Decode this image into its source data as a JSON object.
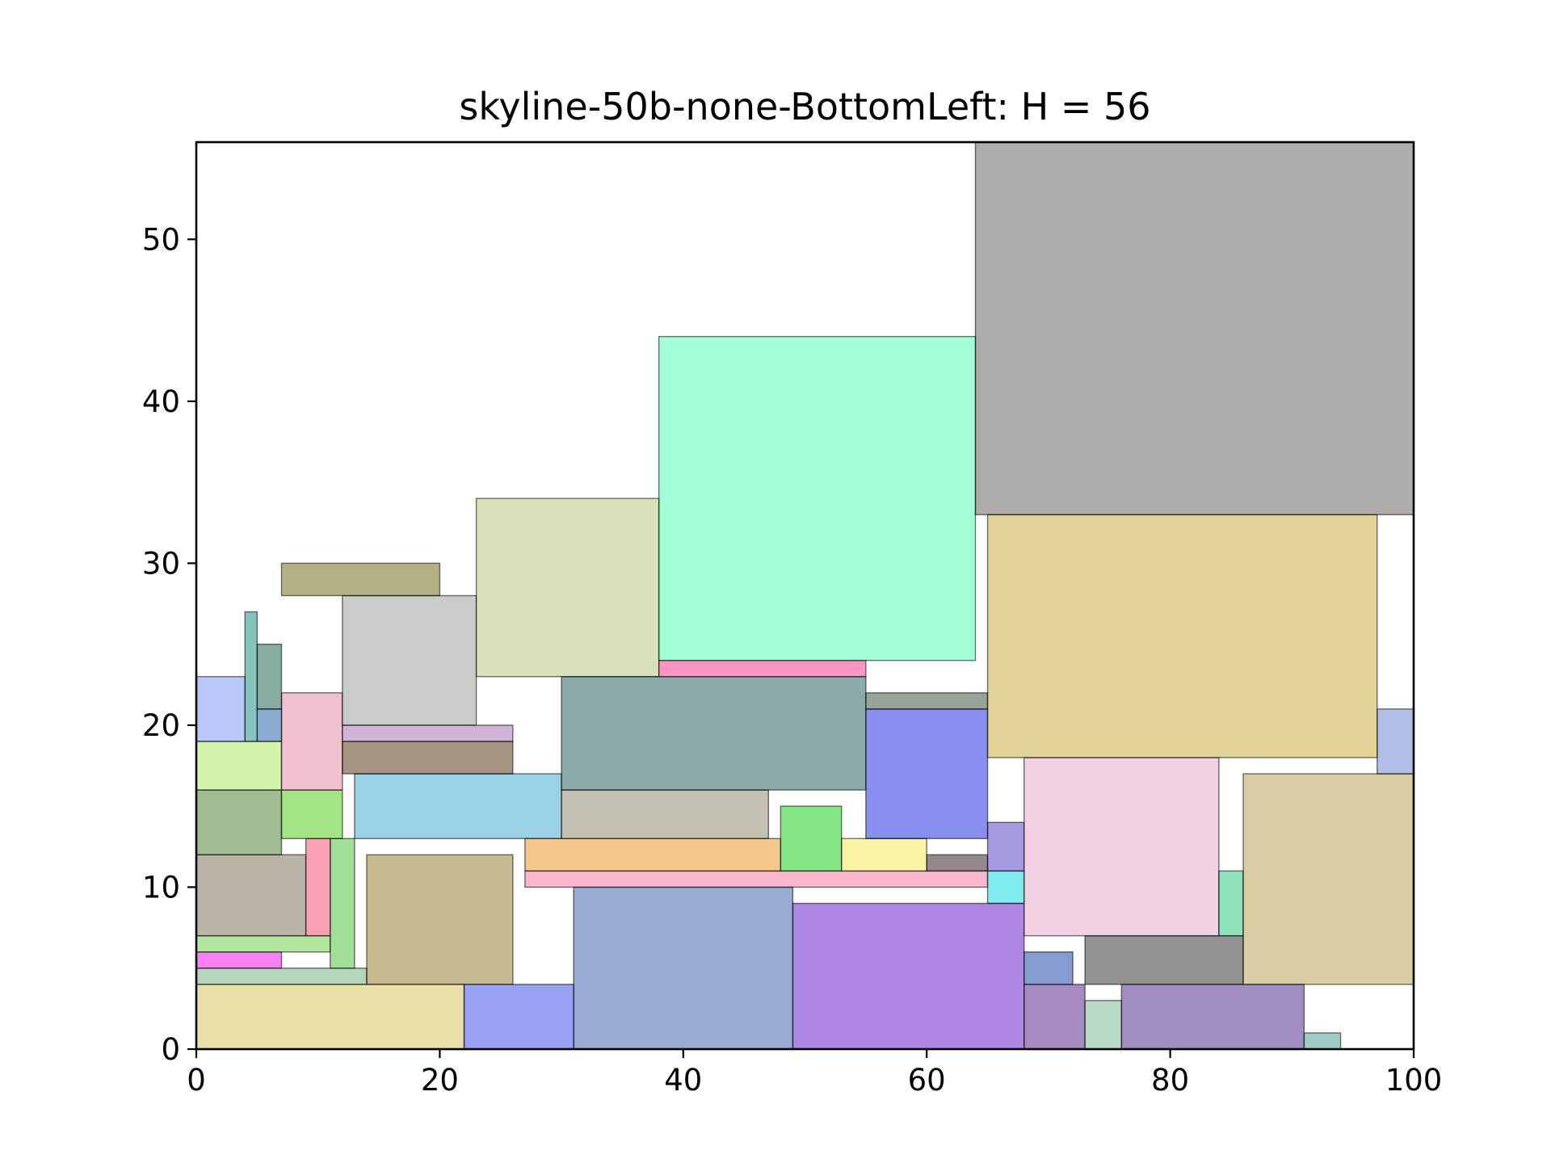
{
  "chart_data": {
    "type": "rectangles",
    "title": "skyline-50b-none-BottomLeft: H = 56",
    "xlabel": "",
    "ylabel": "",
    "xlim": [
      0,
      100
    ],
    "ylim": [
      0,
      56
    ],
    "grid": false,
    "legend": "none",
    "x_ticks": [
      0,
      20,
      40,
      60,
      80,
      100
    ],
    "y_ticks": [
      0,
      10,
      20,
      30,
      40,
      50
    ],
    "rects": [
      {
        "x": 0,
        "y": 0,
        "w": 22,
        "h": 4,
        "color": "#d4c155"
      },
      {
        "x": 22,
        "y": 0,
        "w": 9,
        "h": 4,
        "color": "#3344e6"
      },
      {
        "x": 31,
        "y": 0,
        "w": 18,
        "h": 10,
        "color": "#3358aa"
      },
      {
        "x": 49,
        "y": 0,
        "w": 19,
        "h": 9,
        "color": "#5f0ccb"
      },
      {
        "x": 68,
        "y": 0,
        "w": 5,
        "h": 4,
        "color": "#4c1786"
      },
      {
        "x": 73,
        "y": 0,
        "w": 3,
        "h": 3,
        "color": "#74b890"
      },
      {
        "x": 76,
        "y": 0,
        "w": 15,
        "h": 4,
        "color": "#441d88"
      },
      {
        "x": 91,
        "y": 0,
        "w": 3,
        "h": 1,
        "color": "#3f9890"
      },
      {
        "x": 0,
        "y": 4,
        "w": 14,
        "h": 1,
        "color": "#6ba979"
      },
      {
        "x": 14,
        "y": 4,
        "w": 12,
        "h": 8,
        "color": "#8a7320"
      },
      {
        "x": 0,
        "y": 5,
        "w": 7,
        "h": 1,
        "color": "#f004e8"
      },
      {
        "x": 0,
        "y": 6,
        "w": 11,
        "h": 1,
        "color": "#67cf3f"
      },
      {
        "x": 11,
        "y": 5,
        "w": 2,
        "h": 8,
        "color": "#44bd2e"
      },
      {
        "x": 0,
        "y": 7,
        "w": 9,
        "h": 5,
        "color": "#776c50"
      },
      {
        "x": 9,
        "y": 7,
        "w": 2,
        "h": 6,
        "color": "#f14365"
      },
      {
        "x": 0,
        "y": 12,
        "w": 7,
        "h": 4,
        "color": "#467a25"
      },
      {
        "x": 7,
        "y": 13,
        "w": 5,
        "h": 3,
        "color": "#48c90c"
      },
      {
        "x": 13,
        "y": 13,
        "w": 17,
        "h": 4,
        "color": "#36a4cb"
      },
      {
        "x": 0,
        "y": 16,
        "w": 7,
        "h": 3,
        "color": "#a5ea5c"
      },
      {
        "x": 7,
        "y": 16,
        "w": 5,
        "h": 6,
        "color": "#e5839f"
      },
      {
        "x": 0,
        "y": 19,
        "w": 4,
        "h": 4,
        "color": "#7390f5"
      },
      {
        "x": 4,
        "y": 19,
        "w": 1,
        "h": 8,
        "color": "#0a8a7a"
      },
      {
        "x": 5,
        "y": 19,
        "w": 2,
        "h": 2,
        "color": "#1757a7"
      },
      {
        "x": 5,
        "y": 21,
        "w": 2,
        "h": 4,
        "color": "#0e5a48"
      },
      {
        "x": 12,
        "y": 17,
        "w": 14,
        "h": 2,
        "color": "#4a2a04"
      },
      {
        "x": 12,
        "y": 19,
        "w": 14,
        "h": 1,
        "color": "#a467b1"
      },
      {
        "x": 12,
        "y": 20,
        "w": 11,
        "h": 8,
        "color": "#929b8f"
      },
      {
        "x": 7,
        "y": 28,
        "w": 13,
        "h": 2,
        "color": "#6a650b"
      },
      {
        "x": 23,
        "y": 23,
        "w": 15,
        "h": 11,
        "color": "#b5c274"
      },
      {
        "x": 27,
        "y": 10,
        "w": 38,
        "h": 1,
        "color": "#f4729c"
      },
      {
        "x": 27,
        "y": 11,
        "w": 21,
        "h": 2,
        "color": "#e78f1a"
      },
      {
        "x": 48,
        "y": 11,
        "w": 5,
        "h": 4,
        "color": "#0acb0f"
      },
      {
        "x": 53,
        "y": 11,
        "w": 7,
        "h": 2,
        "color": "#f4ea48"
      },
      {
        "x": 60,
        "y": 11,
        "w": 5,
        "h": 1,
        "color": "#2d1020"
      },
      {
        "x": 30,
        "y": 13,
        "w": 17,
        "h": 3,
        "color": "#8b826a"
      },
      {
        "x": 30,
        "y": 16,
        "w": 25,
        "h": 7,
        "color": "#165a54"
      },
      {
        "x": 38,
        "y": 23,
        "w": 17,
        "h": 1,
        "color": "#fc2d8e"
      },
      {
        "x": 38,
        "y": 24,
        "w": 26,
        "h": 20,
        "color": "#46fdaf"
      },
      {
        "x": 55,
        "y": 13,
        "w": 10,
        "h": 8,
        "color": "#1320e0"
      },
      {
        "x": 55,
        "y": 21,
        "w": 10,
        "h": 1,
        "color": "#324836"
      },
      {
        "x": 65,
        "y": 9,
        "w": 3,
        "h": 2,
        "color": "#04d7e2"
      },
      {
        "x": 65,
        "y": 11,
        "w": 3,
        "h": 3,
        "color": "#4b36c2"
      },
      {
        "x": 68,
        "y": 4,
        "w": 4,
        "h": 2,
        "color": "#0b3aa3"
      },
      {
        "x": 73,
        "y": 4,
        "w": 13,
        "h": 3,
        "color": "#242424"
      },
      {
        "x": 68,
        "y": 7,
        "w": 16,
        "h": 11,
        "color": "#e6a5c6"
      },
      {
        "x": 84,
        "y": 7,
        "w": 2,
        "h": 4,
        "color": "#1bc575"
      },
      {
        "x": 86,
        "y": 4,
        "w": 14,
        "h": 13,
        "color": "#b59b43"
      },
      {
        "x": 97,
        "y": 17,
        "w": 3,
        "h": 4,
        "color": "#6581d1"
      },
      {
        "x": 65,
        "y": 18,
        "w": 32,
        "h": 15,
        "color": "#c7a633"
      },
      {
        "x": 64,
        "y": 33,
        "w": 36,
        "h": 23,
        "color": "#625a53"
      }
    ]
  }
}
